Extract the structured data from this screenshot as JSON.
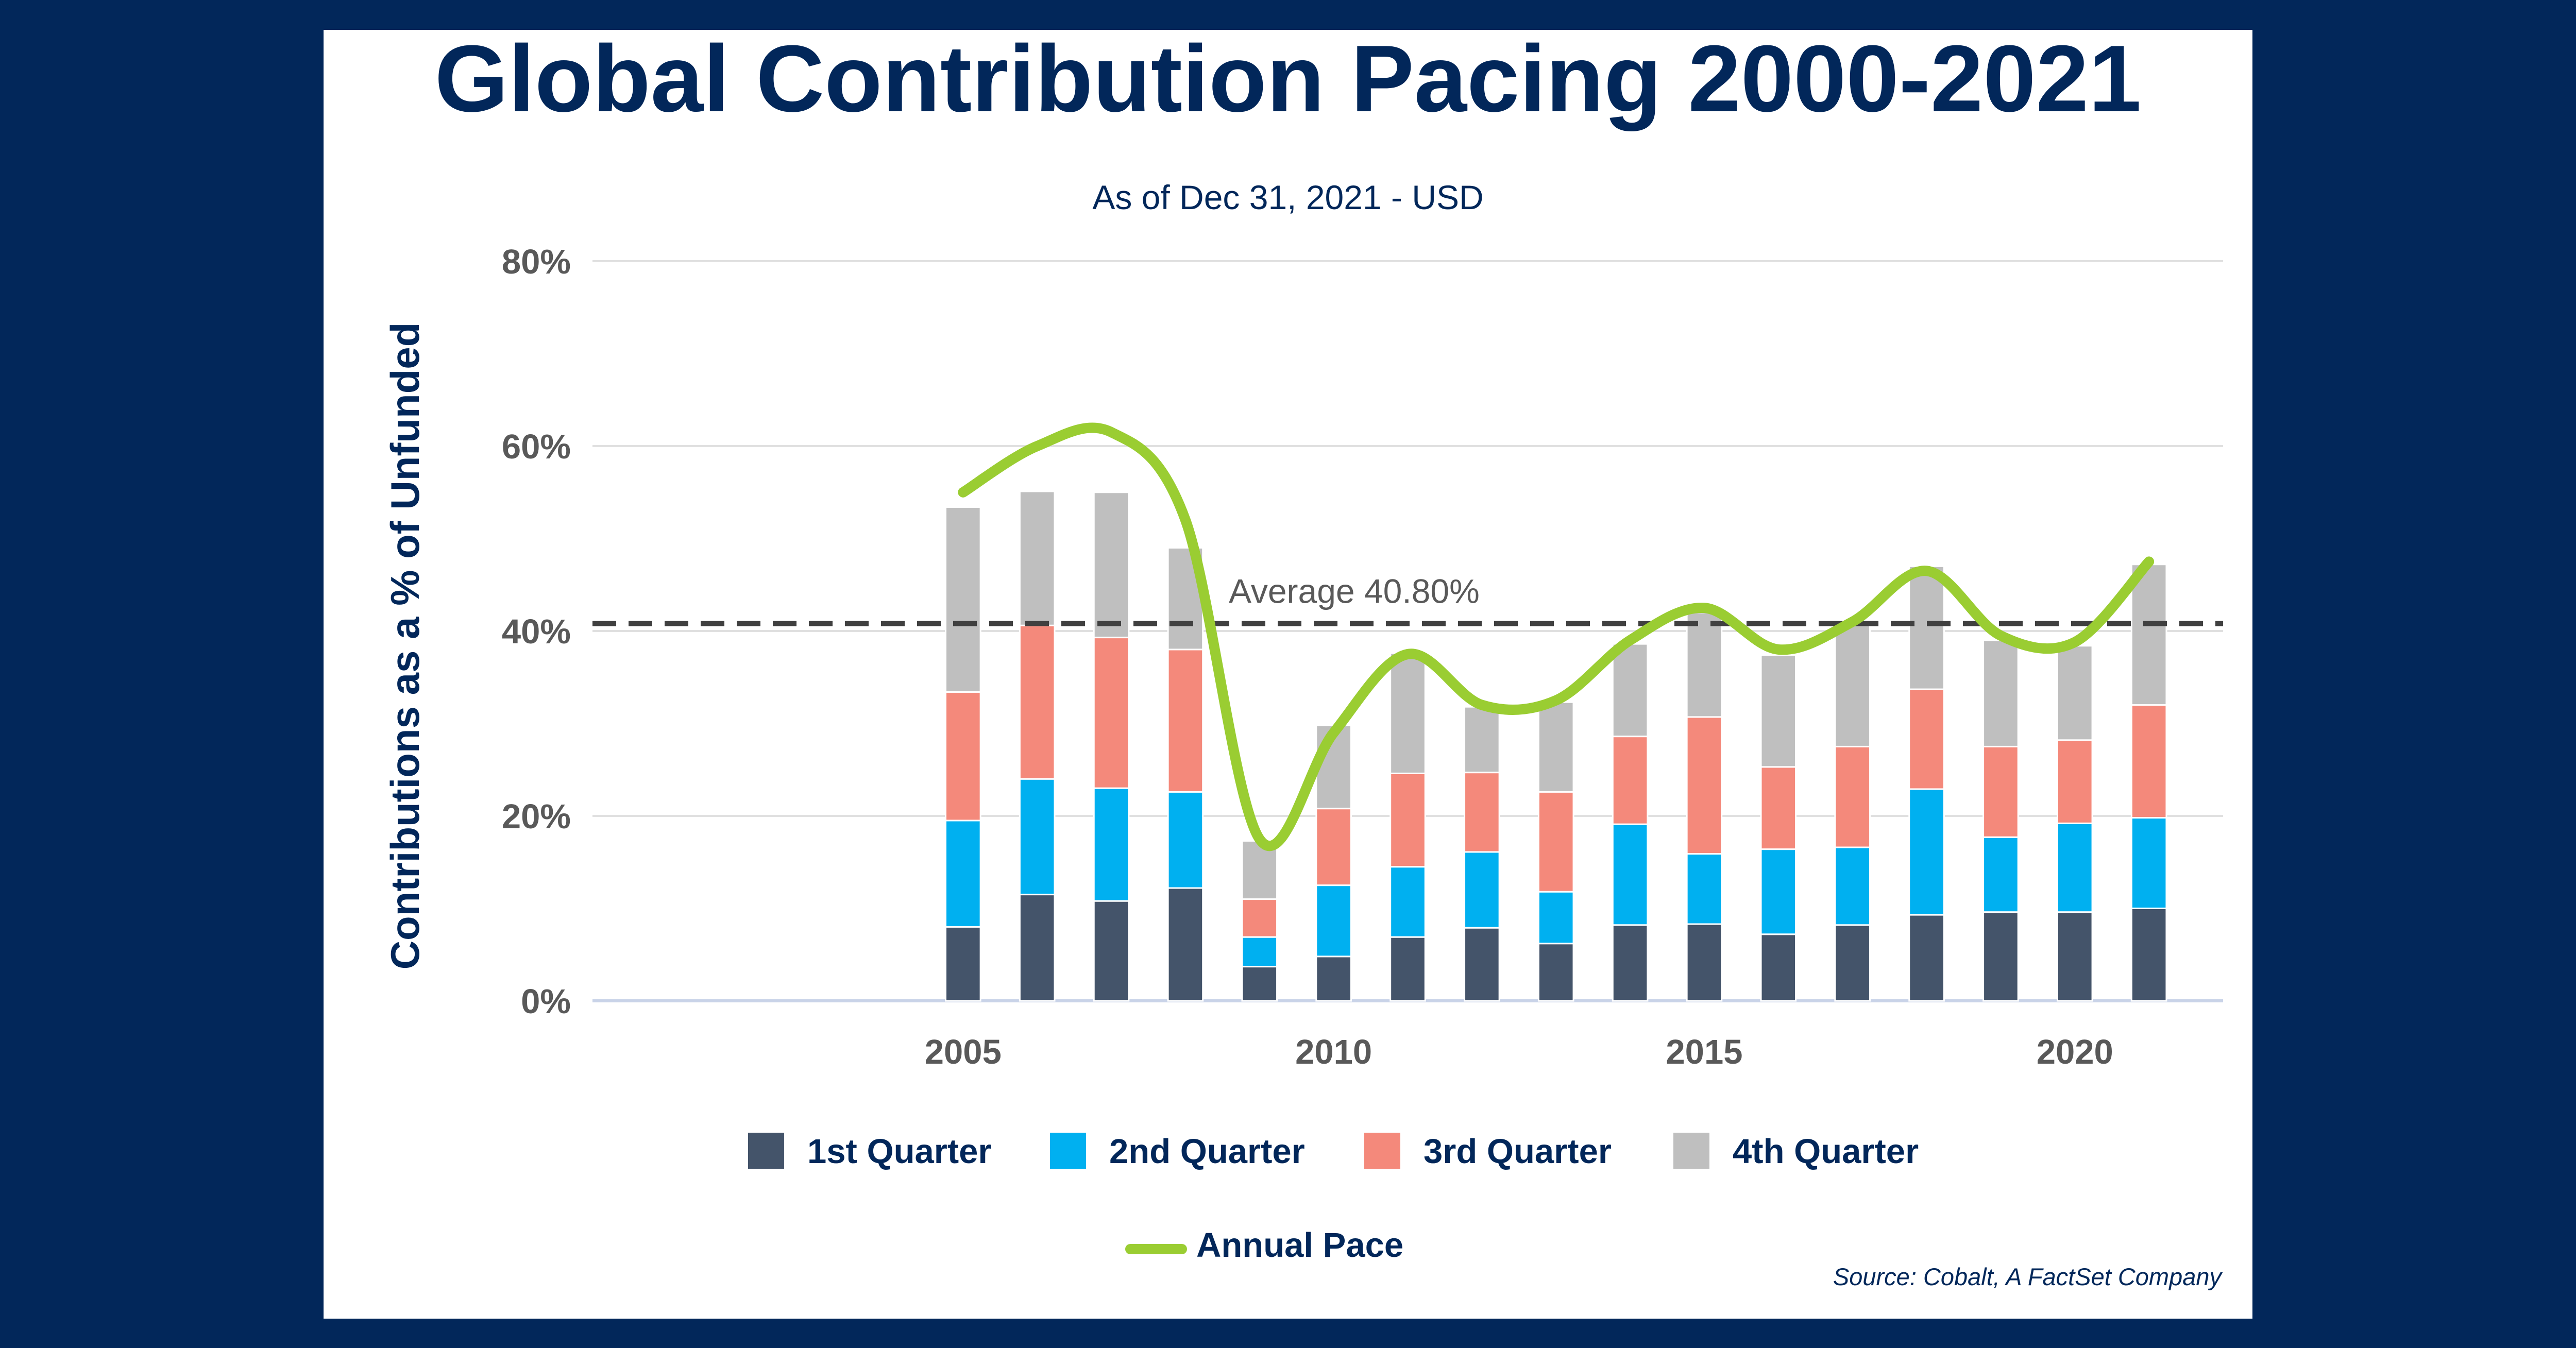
{
  "page": {
    "background": "#02275a",
    "panel": "#ffffff"
  },
  "chart_data": {
    "type": "bar",
    "stacked": true,
    "title": "Global Contribution Pacing 2000-2021",
    "subtitle": "As of Dec 31, 2021 - USD",
    "ylabel": "Contributions as a % of Unfunded",
    "xlabel": "",
    "source": "Source: Cobalt, A FactSet Company",
    "x": [
      2005,
      2006,
      2007,
      2008,
      2009,
      2010,
      2011,
      2012,
      2013,
      2014,
      2015,
      2016,
      2017,
      2018,
      2019,
      2020,
      2021
    ],
    "xlim": [
      2000,
      2022
    ],
    "x_ticks": [
      2005,
      2010,
      2015,
      2020
    ],
    "x_tick_labels": [
      "2005",
      "2010",
      "2015",
      "2020"
    ],
    "ylim": [
      0,
      80
    ],
    "y_ticks": [
      0,
      20,
      40,
      60,
      80
    ],
    "y_tick_labels": [
      "0%",
      "20%",
      "40%",
      "60%",
      "80%"
    ],
    "grid": "horizontal",
    "legend_position": "bottom",
    "series": [
      {
        "name": "1st Quarter",
        "color": "#44546a",
        "values": [
          8.0,
          11.5,
          10.8,
          12.2,
          3.7,
          4.8,
          6.9,
          7.9,
          6.2,
          8.2,
          8.3,
          7.2,
          8.2,
          9.3,
          9.6,
          9.6,
          10.0
        ]
      },
      {
        "name": "2nd Quarter",
        "color": "#00b0f0",
        "values": [
          11.5,
          12.5,
          12.2,
          10.4,
          3.2,
          7.7,
          7.6,
          8.2,
          5.6,
          10.9,
          7.6,
          9.2,
          8.4,
          13.6,
          8.1,
          9.6,
          9.8
        ]
      },
      {
        "name": "3rd Quarter",
        "color": "#f4897b",
        "values": [
          13.9,
          16.6,
          16.3,
          15.4,
          4.1,
          8.3,
          10.1,
          8.6,
          10.8,
          9.5,
          14.8,
          8.9,
          10.9,
          10.8,
          9.8,
          9.0,
          12.2
        ]
      },
      {
        "name": "4th Quarter",
        "color": "#bfbfbf",
        "values": [
          20.0,
          14.5,
          15.7,
          11.0,
          6.3,
          9.0,
          13.0,
          7.1,
          9.7,
          10.0,
          11.3,
          12.1,
          13.3,
          13.3,
          11.5,
          10.2,
          15.2
        ]
      }
    ],
    "line": {
      "name": "Annual Pace",
      "color": "#9acd32",
      "x": [
        2005,
        2006,
        2007,
        2008,
        2009,
        2010,
        2011,
        2012,
        2013,
        2014,
        2015,
        2016,
        2017,
        2018,
        2019,
        2020,
        2021
      ],
      "values": [
        55.0,
        60.0,
        61.5,
        52.0,
        17.5,
        29.0,
        37.5,
        32.0,
        32.5,
        39.0,
        42.5,
        38.0,
        41.0,
        46.5,
        39.5,
        38.8,
        47.5
      ]
    },
    "reference_line": {
      "value": 40.8,
      "label": "Average 40.80%",
      "color": "#404040",
      "style": "dashed"
    }
  }
}
